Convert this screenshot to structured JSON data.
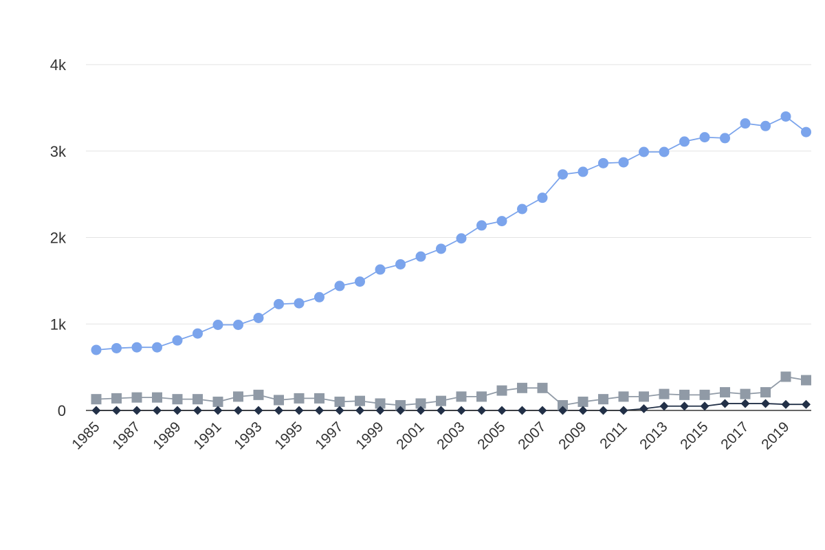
{
  "chart_data": {
    "type": "line",
    "x": [
      1985,
      1986,
      1987,
      1988,
      1989,
      1990,
      1991,
      1992,
      1993,
      1994,
      1995,
      1996,
      1997,
      1998,
      1999,
      2000,
      2001,
      2002,
      2003,
      2004,
      2005,
      2006,
      2007,
      2008,
      2009,
      2010,
      2011,
      2012,
      2013,
      2014,
      2015,
      2016,
      2017,
      2018,
      2019,
      2020
    ],
    "x_tick_labels": [
      "1985",
      "1987",
      "1989",
      "1991",
      "1993",
      "1995",
      "1997",
      "1999",
      "2001",
      "2003",
      "2005",
      "2007",
      "2009",
      "2011",
      "2013",
      "2015",
      "2017",
      "2019"
    ],
    "ylim": [
      0,
      4000
    ],
    "y_ticks": [
      0,
      1000,
      2000,
      3000,
      4000
    ],
    "y_tick_labels": [
      "0",
      "1k",
      "2k",
      "3k",
      "4k"
    ],
    "grid": true,
    "legend": "none",
    "series": [
      {
        "marker": "circle",
        "color": "#7ba4ec",
        "values": [
          700,
          720,
          730,
          730,
          810,
          890,
          990,
          990,
          1070,
          1230,
          1240,
          1310,
          1440,
          1490,
          1630,
          1690,
          1780,
          1870,
          1990,
          2140,
          2190,
          2330,
          2460,
          2730,
          2760,
          2860,
          2870,
          2990,
          2990,
          3110,
          3160,
          3150,
          3320,
          3290,
          3400,
          3220
        ]
      },
      {
        "marker": "square",
        "color": "#909aa6",
        "values": [
          130,
          140,
          150,
          150,
          130,
          130,
          100,
          160,
          180,
          120,
          140,
          140,
          100,
          110,
          80,
          60,
          80,
          110,
          160,
          160,
          230,
          260,
          260,
          60,
          100,
          130,
          160,
          160,
          190,
          180,
          180,
          210,
          190,
          210,
          390,
          350
        ]
      },
      {
        "marker": "diamond",
        "color": "#223047",
        "values": [
          0,
          0,
          0,
          0,
          0,
          0,
          0,
          0,
          0,
          0,
          0,
          0,
          0,
          0,
          0,
          0,
          0,
          0,
          0,
          0,
          0,
          0,
          0,
          0,
          0,
          0,
          0,
          20,
          50,
          50,
          50,
          80,
          80,
          80,
          70,
          70
        ]
      }
    ]
  }
}
